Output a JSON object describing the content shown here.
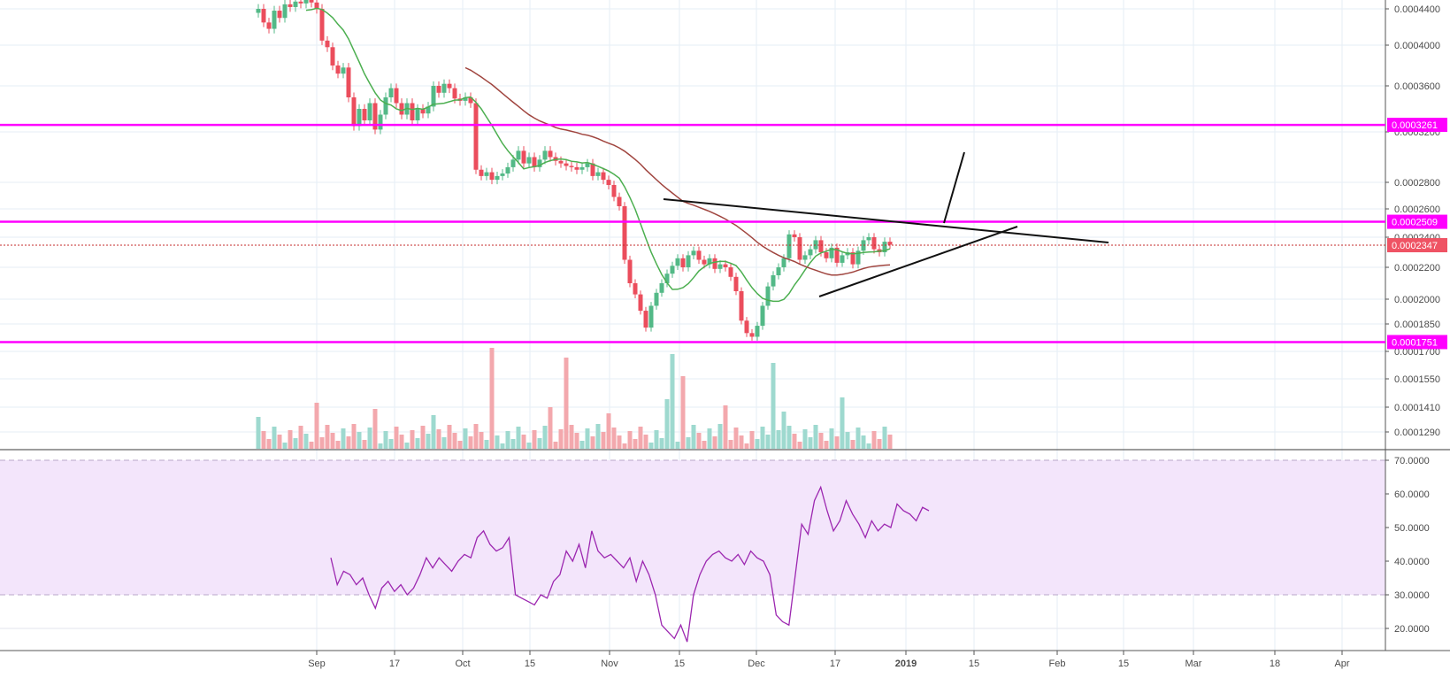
{
  "chart_data": [
    {
      "type": "candlestick",
      "title": "",
      "y_axis_ticks": [
        "0.0004400",
        "0.0004000",
        "0.0003600",
        "0.0003200",
        "0.0002800",
        "0.0002600",
        "0.0002400",
        "0.0002200",
        "0.0002000",
        "0.0001850",
        "0.0001700",
        "0.0001550",
        "0.0001410",
        "0.0001290"
      ],
      "x_axis_ticks": [
        "Sep",
        "17",
        "Oct",
        "15",
        "Nov",
        "15",
        "Dec",
        "17",
        "2019",
        "15",
        "Feb",
        "15",
        "Mar",
        "18",
        "Apr"
      ],
      "price_labels": [
        {
          "text": "0.0003261",
          "value": 0.0003261,
          "color": "#ff00ff"
        },
        {
          "text": "0.0002509",
          "value": 0.0002509,
          "color": "#ff00ff"
        },
        {
          "text": "0.0002347",
          "value": 0.0002347,
          "color": "#ef5364"
        },
        {
          "text": "0.0001751",
          "value": 0.0001751,
          "color": "#ff00ff"
        }
      ],
      "horizontal_levels": [
        0.0003261,
        0.0002509,
        0.0001751
      ],
      "last_price": 0.0002347,
      "series": [
        {
          "type": "candles",
          "color_up": "#53b987",
          "color_down": "#eb4d5c"
        },
        {
          "type": "sma",
          "color": "#4caf50"
        },
        {
          "type": "sma",
          "color": "#a0453f"
        },
        {
          "type": "volume",
          "color_up": "#9ed9cf",
          "color_down": "#f3a8ad"
        }
      ],
      "annotations": [
        "descending trendline",
        "ascending trendline",
        "breakout arrow"
      ],
      "grid": true
    },
    {
      "type": "line",
      "title": "",
      "y_axis_ticks": [
        "70.0000",
        "60.0000",
        "50.0000",
        "40.0000",
        "30.0000",
        "20.0000"
      ],
      "overbought": 70,
      "oversold": 30,
      "band_color": "#f3e5fb",
      "line_color": "#9c27b0",
      "grid": true
    }
  ]
}
